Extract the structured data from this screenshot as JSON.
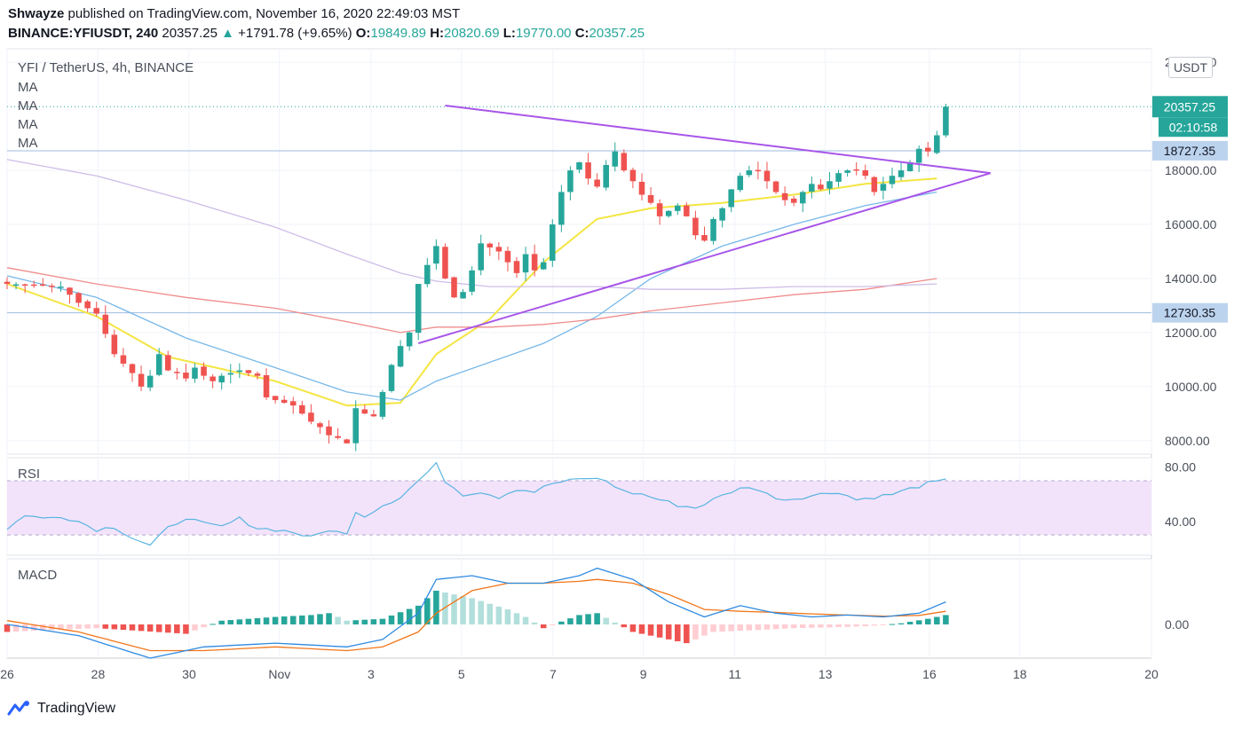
{
  "header": {
    "publisher": "Shwayze",
    "published_text": "published on TradingView.com, November 16, 2020 22:49:03 MST",
    "symbol": "BINANCE:YFIUSDT, 240",
    "last": "20357.25",
    "change": "+1791.78 (+9.65%)",
    "o_label": "O:",
    "o_value": "19849.89",
    "h_label": "H:",
    "h_value": "20820.69",
    "l_label": "L:",
    "l_value": "19770.00",
    "c_label": "C:",
    "c_value": "20357.25"
  },
  "legend": {
    "title": "YFI / TetherUS, 4h, BINANCE",
    "ma_labels": [
      "MA",
      "MA",
      "MA",
      "MA"
    ],
    "currency_button": "USDT",
    "rsi_label": "RSI",
    "macd_label": "MACD"
  },
  "price_tags": {
    "last_price": "20357.25",
    "countdown": "02:10:58",
    "level_upper": "18727.35",
    "level_lower": "12730.35"
  },
  "brand": {
    "name": "TradingView"
  },
  "colors": {
    "up": "#26a69a",
    "down": "#ef5350",
    "ma_yellow": "#f4e542",
    "ma_blue": "#78b8e8",
    "ma_red": "#f08c8c",
    "ma_lavender": "#cdbde8",
    "triangle": "#a855e8",
    "rsi_line": "#5ab4e0",
    "rsi_band": "#f2e3fb",
    "macd_line": "#2f8ae0",
    "signal_line": "#f2761a",
    "tag_bg": "#bcd3ee",
    "last_tag_bg": "#26a69a"
  },
  "chart_data": [
    {
      "type": "candlestick",
      "title": "YFI / TetherUS, 4h, BINANCE",
      "x_tick_labels": [
        "26",
        "28",
        "30",
        "Nov",
        "3",
        "5",
        "7",
        "9",
        "11",
        "13",
        "16",
        "18",
        "20"
      ],
      "y_tick_labels": [
        "22000.00",
        "18000.00",
        "16000.00",
        "14000.00",
        "12000.00",
        "10000.00",
        "8000.00"
      ],
      "ylim": [
        7500,
        22500
      ],
      "close_path": [
        [
          0,
          13800
        ],
        [
          6,
          13700
        ],
        [
          8,
          13100
        ],
        [
          10,
          12700
        ],
        [
          12,
          11200
        ],
        [
          14,
          10500
        ],
        [
          15,
          10000
        ],
        [
          16,
          10400
        ],
        [
          17,
          11200
        ],
        [
          18,
          10600
        ],
        [
          19,
          10500
        ],
        [
          20,
          10300
        ],
        [
          21,
          10700
        ],
        [
          22,
          10400
        ],
        [
          23,
          10200
        ],
        [
          24,
          10400
        ],
        [
          26,
          10600
        ],
        [
          28,
          10400
        ],
        [
          29,
          9600
        ],
        [
          32,
          9300
        ],
        [
          33,
          9000
        ],
        [
          34,
          8700
        ],
        [
          35,
          8500
        ],
        [
          36,
          8200
        ],
        [
          37,
          8100
        ],
        [
          38,
          7900
        ],
        [
          39,
          9200
        ],
        [
          40,
          9000
        ],
        [
          41,
          8900
        ],
        [
          42,
          9800
        ],
        [
          43,
          10800
        ],
        [
          44,
          11500
        ],
        [
          45,
          12000
        ],
        [
          46,
          13800
        ],
        [
          48,
          15200
        ],
        [
          49,
          14000
        ],
        [
          50,
          13300
        ],
        [
          51,
          13500
        ],
        [
          52,
          14300
        ],
        [
          53,
          15300
        ],
        [
          55,
          15000
        ],
        [
          56,
          14600
        ],
        [
          57,
          14200
        ],
        [
          58,
          14900
        ],
        [
          59,
          14300
        ],
        [
          60,
          14600
        ],
        [
          61,
          16000
        ],
        [
          62,
          17200
        ],
        [
          63,
          18000
        ],
        [
          64,
          18300
        ],
        [
          65,
          17700
        ],
        [
          66,
          17400
        ],
        [
          67,
          18200
        ],
        [
          68,
          18700
        ],
        [
          69,
          18000
        ],
        [
          70,
          17600
        ],
        [
          71,
          17100
        ],
        [
          72,
          16800
        ],
        [
          73,
          16300
        ],
        [
          74,
          16500
        ],
        [
          75,
          16700
        ],
        [
          76,
          16300
        ],
        [
          77,
          15600
        ],
        [
          78,
          15400
        ],
        [
          79,
          16200
        ],
        [
          80,
          16600
        ],
        [
          81,
          17300
        ],
        [
          82,
          17800
        ],
        [
          83,
          18000
        ],
        [
          84,
          18000
        ],
        [
          85,
          17600
        ],
        [
          86,
          17200
        ],
        [
          87,
          16900
        ],
        [
          88,
          16800
        ],
        [
          89,
          17200
        ],
        [
          90,
          17500
        ],
        [
          91,
          17300
        ],
        [
          92,
          17600
        ],
        [
          93,
          17900
        ],
        [
          94,
          18000
        ],
        [
          95,
          18000
        ],
        [
          96,
          17800
        ],
        [
          97,
          17200
        ],
        [
          98,
          17500
        ],
        [
          99,
          17800
        ],
        [
          100,
          18000
        ],
        [
          101,
          18300
        ],
        [
          102,
          18800
        ],
        [
          103,
          18700
        ],
        [
          104,
          19300
        ],
        [
          105,
          20357
        ]
      ],
      "moving_averages": [
        {
          "color": "ma_yellow",
          "points": [
            [
              0,
              13800
            ],
            [
              10,
              12600
            ],
            [
              18,
              11100
            ],
            [
              30,
              10200
            ],
            [
              38,
              9300
            ],
            [
              44,
              9400
            ],
            [
              48,
              11200
            ],
            [
              54,
              12500
            ],
            [
              60,
              14600
            ],
            [
              66,
              16200
            ],
            [
              72,
              16600
            ],
            [
              80,
              16800
            ],
            [
              88,
              17100
            ],
            [
              96,
              17500
            ],
            [
              104,
              17700
            ]
          ]
        },
        {
          "color": "ma_blue",
          "points": [
            [
              0,
              14100
            ],
            [
              10,
              13300
            ],
            [
              20,
              11800
            ],
            [
              30,
              10700
            ],
            [
              38,
              9800
            ],
            [
              44,
              9500
            ],
            [
              48,
              10200
            ],
            [
              54,
              10900
            ],
            [
              60,
              11600
            ],
            [
              66,
              12600
            ],
            [
              72,
              14000
            ],
            [
              80,
              15200
            ],
            [
              88,
              16000
            ],
            [
              96,
              16700
            ],
            [
              104,
              17200
            ]
          ]
        },
        {
          "color": "ma_red",
          "points": [
            [
              0,
              14400
            ],
            [
              10,
              13800
            ],
            [
              20,
              13300
            ],
            [
              30,
              12900
            ],
            [
              38,
              12400
            ],
            [
              44,
              12000
            ],
            [
              48,
              12200
            ],
            [
              54,
              12200
            ],
            [
              60,
              12300
            ],
            [
              66,
              12500
            ],
            [
              72,
              12800
            ],
            [
              80,
              13100
            ],
            [
              88,
              13400
            ],
            [
              96,
              13600
            ],
            [
              104,
              14000
            ]
          ]
        },
        {
          "color": "ma_lavender",
          "points": [
            [
              0,
              18400
            ],
            [
              10,
              17800
            ],
            [
              20,
              16900
            ],
            [
              30,
              15900
            ],
            [
              38,
              14900
            ],
            [
              44,
              14200
            ],
            [
              48,
              13900
            ],
            [
              54,
              13700
            ],
            [
              60,
              13700
            ],
            [
              66,
              13700
            ],
            [
              72,
              13600
            ],
            [
              80,
              13600
            ],
            [
              88,
              13700
            ],
            [
              96,
              13700
            ],
            [
              104,
              13800
            ]
          ]
        }
      ],
      "trendlines": [
        {
          "from": [
            49,
            20400
          ],
          "to": [
            110,
            17900
          ]
        },
        {
          "from": [
            46,
            11600
          ],
          "to": [
            110,
            17900
          ]
        }
      ],
      "horizontal_levels": [
        18727.35,
        12730.35,
        20357.25
      ],
      "last_price": 20357.25,
      "countdown": "02:10:58"
    },
    {
      "type": "line",
      "title": "RSI",
      "y_tick_labels": [
        "80.00",
        "40.00"
      ],
      "ylim": [
        15,
        87
      ],
      "band": [
        30,
        70
      ],
      "values": [
        [
          0,
          34
        ],
        [
          2,
          45
        ],
        [
          4,
          42
        ],
        [
          6,
          44
        ],
        [
          8,
          40
        ],
        [
          10,
          34
        ],
        [
          12,
          36
        ],
        [
          14,
          28
        ],
        [
          16,
          22
        ],
        [
          18,
          35
        ],
        [
          20,
          43
        ],
        [
          22,
          38
        ],
        [
          24,
          36
        ],
        [
          26,
          42
        ],
        [
          28,
          35
        ],
        [
          30,
          34
        ],
        [
          32,
          32
        ],
        [
          34,
          28
        ],
        [
          36,
          34
        ],
        [
          38,
          30
        ],
        [
          39,
          48
        ],
        [
          40,
          44
        ],
        [
          42,
          52
        ],
        [
          44,
          58
        ],
        [
          46,
          70
        ],
        [
          47,
          76
        ],
        [
          48,
          82
        ],
        [
          49,
          70
        ],
        [
          51,
          60
        ],
        [
          53,
          62
        ],
        [
          55,
          58
        ],
        [
          57,
          64
        ],
        [
          59,
          62
        ],
        [
          61,
          68
        ],
        [
          63,
          70
        ],
        [
          65,
          72
        ],
        [
          67,
          70
        ],
        [
          69,
          62
        ],
        [
          71,
          60
        ],
        [
          73,
          56
        ],
        [
          75,
          52
        ],
        [
          77,
          50
        ],
        [
          79,
          56
        ],
        [
          81,
          62
        ],
        [
          83,
          66
        ],
        [
          85,
          60
        ],
        [
          87,
          56
        ],
        [
          89,
          58
        ],
        [
          91,
          60
        ],
        [
          93,
          62
        ],
        [
          95,
          56
        ],
        [
          97,
          58
        ],
        [
          99,
          60
        ],
        [
          101,
          64
        ],
        [
          103,
          68
        ],
        [
          105,
          70
        ]
      ]
    },
    {
      "type": "bar+line",
      "title": "MACD",
      "y_tick_labels": [
        "0.00"
      ],
      "ylim": [
        -900,
        1750
      ],
      "macd": [
        [
          0,
          0
        ],
        [
          8,
          -300
        ],
        [
          16,
          -900
        ],
        [
          22,
          -600
        ],
        [
          30,
          -500
        ],
        [
          38,
          -600
        ],
        [
          42,
          -400
        ],
        [
          46,
          300
        ],
        [
          48,
          1200
        ],
        [
          52,
          1300
        ],
        [
          56,
          1100
        ],
        [
          60,
          1100
        ],
        [
          64,
          1300
        ],
        [
          66,
          1500
        ],
        [
          70,
          1200
        ],
        [
          74,
          600
        ],
        [
          78,
          200
        ],
        [
          82,
          500
        ],
        [
          86,
          300
        ],
        [
          90,
          200
        ],
        [
          94,
          250
        ],
        [
          98,
          200
        ],
        [
          102,
          300
        ],
        [
          105,
          600
        ]
      ],
      "signal": [
        [
          0,
          100
        ],
        [
          8,
          -200
        ],
        [
          16,
          -700
        ],
        [
          22,
          -700
        ],
        [
          30,
          -600
        ],
        [
          38,
          -700
        ],
        [
          42,
          -600
        ],
        [
          46,
          -200
        ],
        [
          48,
          300
        ],
        [
          52,
          900
        ],
        [
          56,
          1100
        ],
        [
          60,
          1100
        ],
        [
          64,
          1150
        ],
        [
          66,
          1200
        ],
        [
          70,
          1100
        ],
        [
          74,
          800
        ],
        [
          78,
          400
        ],
        [
          82,
          350
        ],
        [
          86,
          320
        ],
        [
          90,
          280
        ],
        [
          94,
          250
        ],
        [
          98,
          220
        ],
        [
          102,
          240
        ],
        [
          105,
          350
        ]
      ],
      "histogram": [
        [
          0,
          -200
        ],
        [
          10,
          -100
        ],
        [
          20,
          -250
        ],
        [
          24,
          100
        ],
        [
          30,
          200
        ],
        [
          34,
          250
        ],
        [
          36,
          300
        ],
        [
          38,
          100
        ],
        [
          42,
          150
        ],
        [
          46,
          500
        ],
        [
          48,
          900
        ],
        [
          52,
          700
        ],
        [
          56,
          400
        ],
        [
          58,
          200
        ],
        [
          60,
          -100
        ],
        [
          64,
          250
        ],
        [
          66,
          300
        ],
        [
          70,
          -200
        ],
        [
          73,
          -350
        ],
        [
          76,
          -500
        ],
        [
          79,
          -200
        ],
        [
          84,
          -150
        ],
        [
          88,
          -100
        ],
        [
          92,
          -80
        ],
        [
          96,
          -50
        ],
        [
          100,
          30
        ],
        [
          103,
          150
        ],
        [
          105,
          250
        ]
      ]
    }
  ]
}
